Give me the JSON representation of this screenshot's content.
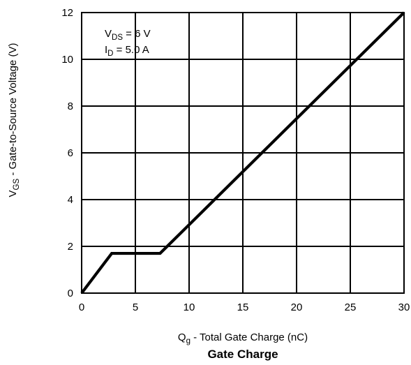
{
  "chart_data": {
    "type": "line",
    "title": "Gate Charge",
    "xlabel": {
      "main": "Q",
      "sub": "g",
      "rest": " - Total Gate Charge (nC)"
    },
    "ylabel": {
      "main": "V",
      "sub": "GS",
      "rest": " - Gate-to-Source Voltage (V)"
    },
    "xlim": [
      0,
      30
    ],
    "ylim": [
      0,
      12
    ],
    "xticks": [
      0,
      5,
      10,
      15,
      20,
      25,
      30
    ],
    "yticks": [
      0,
      2,
      4,
      6,
      8,
      10,
      12
    ],
    "xtick_labels": [
      "0",
      "5",
      "10",
      "15",
      "20",
      "25",
      "30"
    ],
    "ytick_labels": [
      "0",
      "2",
      "4",
      "6",
      "8",
      "10",
      "12"
    ],
    "grid": true,
    "annotations": [
      {
        "main": "V",
        "sub": "DS",
        "rest": " = 6 V"
      },
      {
        "main": "I",
        "sub": "D",
        "rest": " = 5.0 A"
      }
    ],
    "series": [
      {
        "x": [
          0,
          2.8,
          7.3,
          30
        ],
        "y": [
          0,
          1.7,
          1.7,
          12
        ]
      }
    ]
  },
  "colors": {
    "line": "#000000",
    "grid": "#000000",
    "background": "#ffffff"
  }
}
